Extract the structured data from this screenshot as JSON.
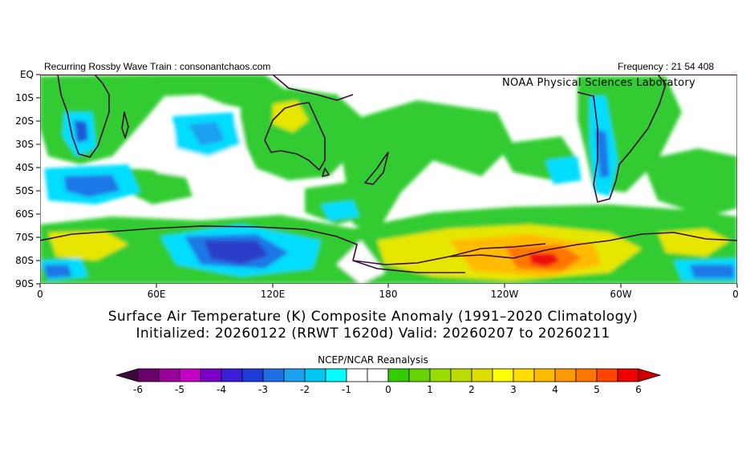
{
  "header": {
    "source_label": "Recurring Rossby Wave Train : consonantchaos.com",
    "frequency_label": "Frequency : 21 54 408",
    "lab_label": "NOAA Physical Sciences Laboratory"
  },
  "map": {
    "y_ticks": [
      "EQ",
      "10S",
      "20S",
      "30S",
      "40S",
      "50S",
      "60S",
      "70S",
      "80S",
      "90S"
    ],
    "x_ticks": [
      "0",
      "60E",
      "120E",
      "180",
      "120W",
      "60W",
      "0"
    ],
    "colors": {
      "coast": "#3b0a3a",
      "neg_light": "#00e0ff",
      "pos_light": "#33cc33"
    }
  },
  "title": {
    "line1": "Surface Air Temperature (K) Composite Anomaly (1991–2020 Climatology)",
    "line2": "Initialized: 20260122 (RRWT 1620d) Valid: 20260207 to 20260211"
  },
  "colorbar": {
    "title": "NCEP/NCAR Reanalysis",
    "labels": [
      "-6",
      "-5",
      "-4",
      "-3",
      "-2",
      "-1",
      "0",
      "1",
      "2",
      "3",
      "4",
      "5",
      "6"
    ],
    "colors": [
      "#3a0a3a",
      "#6a006a",
      "#9a009a",
      "#c400c4",
      "#7a00c8",
      "#3c1ed8",
      "#1e3cd8",
      "#1e6ee6",
      "#1ea0f0",
      "#00c8f0",
      "#00ffff",
      "#ffffff",
      "#ffffff",
      "#33cc00",
      "#66d400",
      "#99dd00",
      "#bbdd00",
      "#dddd00",
      "#ffff00",
      "#ffdd00",
      "#ffbb00",
      "#ff9900",
      "#ff7700",
      "#ff4400",
      "#ee0000",
      "#cc0000"
    ]
  }
}
